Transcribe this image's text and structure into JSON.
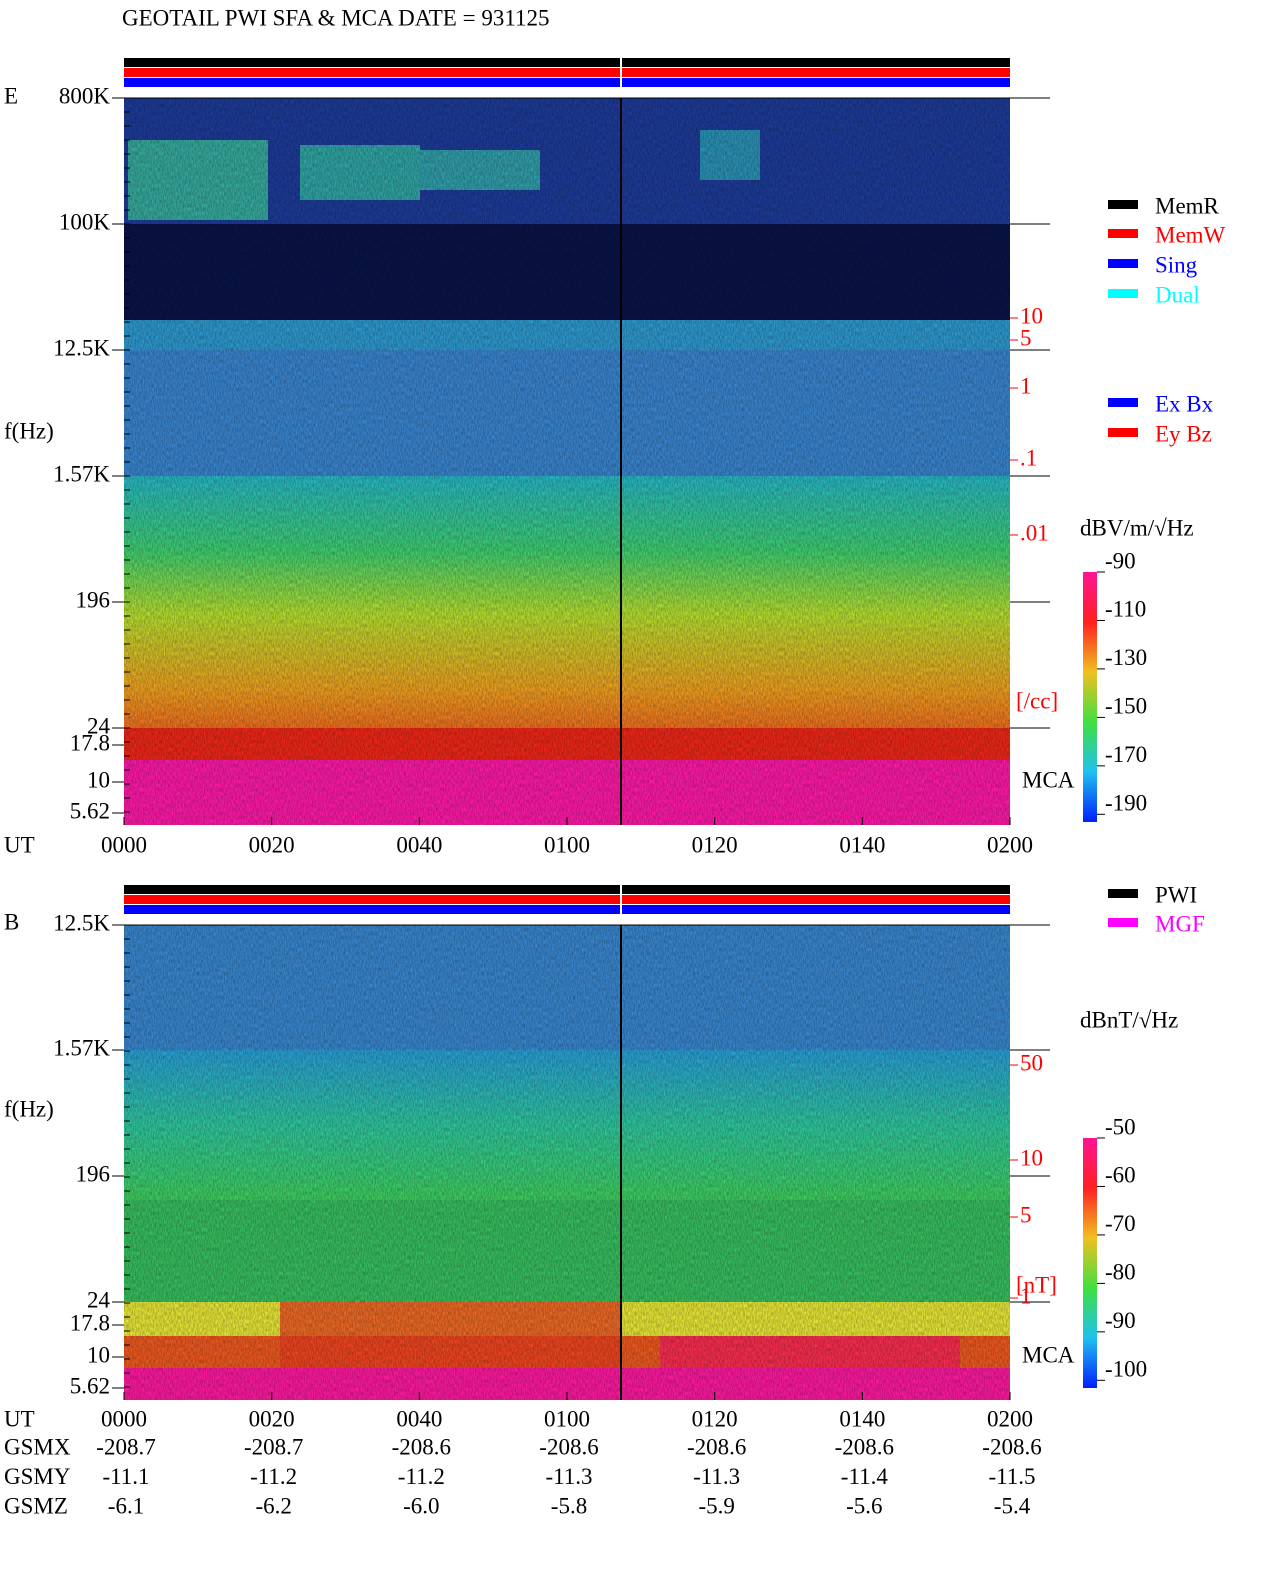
{
  "header": {
    "title": "GEOTAIL   PWI SFA & MCA   DATE = 931125"
  },
  "panels": [
    {
      "label": "E",
      "ylabel": "f(Hz)",
      "freq_ticks": [
        "800K",
        "100K",
        "12.5K",
        "1.57K",
        "196",
        "24",
        "17.8",
        "10",
        "5.62"
      ],
      "right_scale": [
        "10",
        "5",
        "1",
        ".1",
        ".01"
      ],
      "right_unit": "[/cc]",
      "mca": "MCA",
      "legend": [
        {
          "name": "MemR",
          "color": "#000000"
        },
        {
          "name": "MemW",
          "color": "#ff0000"
        },
        {
          "name": "Sing",
          "color": "#0000ff"
        },
        {
          "name": "Dual",
          "color": "#00ffff"
        }
      ],
      "legend2": [
        {
          "name": "Ex Bx",
          "color": "#0000ff"
        },
        {
          "name": "Ey Bz",
          "color": "#ff0000"
        }
      ],
      "colorbar_title": "dBV/m/√Hz",
      "colorbar_ticks": [
        "-90",
        "-110",
        "-130",
        "-150",
        "-170",
        "-190"
      ]
    },
    {
      "label": "B",
      "ylabel": "f(Hz)",
      "freq_ticks": [
        "12.5K",
        "1.57K",
        "196",
        "24",
        "17.8",
        "10",
        "5.62"
      ],
      "right_scale": [
        "50",
        "10",
        "5",
        "1"
      ],
      "right_unit": "[nT]",
      "mca": "MCA",
      "legend": [
        {
          "name": "PWI",
          "color": "#000000"
        },
        {
          "name": "MGF",
          "color": "#ff00ff"
        }
      ],
      "legend2": [],
      "colorbar_title": "dBnT/√Hz",
      "colorbar_ticks": [
        "-50",
        "-60",
        "-70",
        "-80",
        "-90",
        "-100"
      ]
    }
  ],
  "time_axis": {
    "label": "UT",
    "ticks": [
      "0000",
      "0020",
      "0040",
      "0100",
      "0120",
      "0140",
      "0200"
    ]
  },
  "orbit": {
    "rows": [
      {
        "label": "GSMX",
        "values": [
          "-208.7",
          "-208.7",
          "-208.6",
          "-208.6",
          "-208.6",
          "-208.6",
          "-208.6"
        ]
      },
      {
        "label": "GSMY",
        "values": [
          "-11.1",
          "-11.2",
          "-11.2",
          "-11.3",
          "-11.3",
          "-11.4",
          "-11.5"
        ]
      },
      {
        "label": "GSMZ",
        "values": [
          "-6.1",
          "-6.2",
          "-6.0",
          "-5.8",
          "-5.9",
          "-5.6",
          "-5.4"
        ]
      }
    ]
  }
}
